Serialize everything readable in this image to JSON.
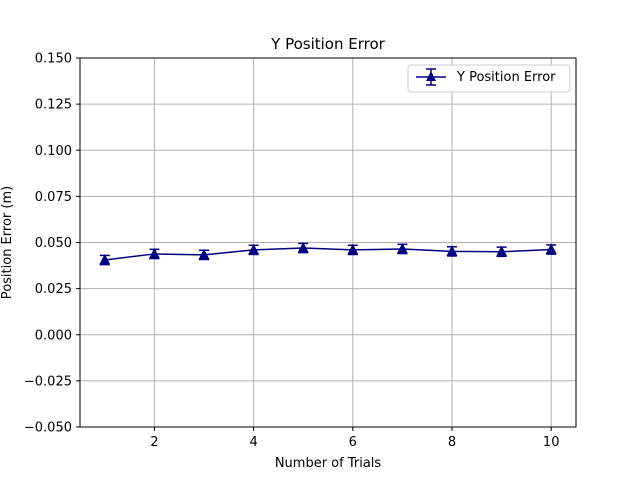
{
  "chart_data": {
    "type": "line",
    "title": "Y Position Error",
    "xlabel": "Number of Trials",
    "ylabel": "Position Error (m)",
    "xlim": [
      0.5,
      10.5
    ],
    "ylim": [
      -0.05,
      0.15
    ],
    "xticks": [
      2,
      4,
      6,
      8,
      10
    ],
    "yticks": [
      -0.05,
      -0.025,
      0.0,
      0.025,
      0.05,
      0.075,
      0.1,
      0.125,
      0.15
    ],
    "ytick_labels": [
      "−0.050",
      "−0.025",
      "0.000",
      "0.025",
      "0.050",
      "0.075",
      "0.100",
      "0.125",
      "0.150"
    ],
    "grid": true,
    "legend_position": "top-right",
    "series": [
      {
        "name": "Y Position Error",
        "color": "#000080",
        "marker": "triangle-up",
        "x": [
          1,
          2,
          3,
          4,
          5,
          6,
          7,
          8,
          9,
          10
        ],
        "y": [
          0.0405,
          0.0438,
          0.0433,
          0.046,
          0.047,
          0.046,
          0.0465,
          0.0452,
          0.045,
          0.0462
        ],
        "yerr": [
          0.0025,
          0.0025,
          0.0025,
          0.0025,
          0.0025,
          0.0025,
          0.0025,
          0.0025,
          0.0025,
          0.0025
        ]
      }
    ]
  }
}
